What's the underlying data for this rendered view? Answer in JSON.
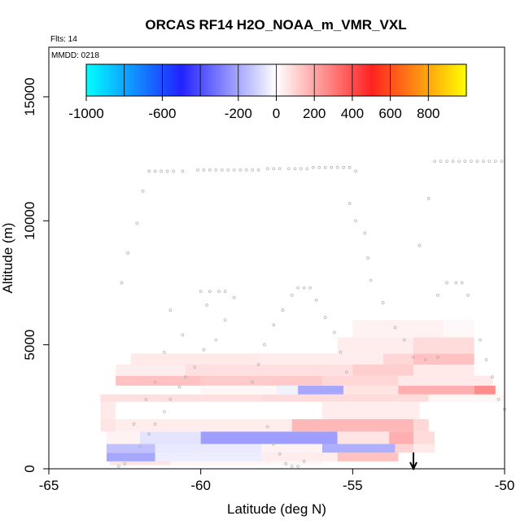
{
  "chart_data": {
    "type": "heatmap",
    "title": "ORCAS RF14 H2O_NOAA_m_VMR_VXL",
    "flights_label": "Flts: 14",
    "date_label": "MMDD: 0218",
    "xlabel": "Latitude (deg N)",
    "ylabel": "Altitude (m)",
    "xlim": [
      -65,
      -50
    ],
    "ylim": [
      0,
      17000
    ],
    "x_ticks": [
      -65,
      -60,
      -55,
      -50
    ],
    "y_ticks": [
      0,
      5000,
      10000,
      15000
    ],
    "colorbar": {
      "range": [
        -1000,
        1000
      ],
      "tick_values": [
        -1000,
        -600,
        -200,
        0,
        200,
        400,
        600,
        800
      ],
      "tick_labels": [
        "-1000",
        "-600",
        "-200",
        "0",
        "200",
        "400",
        "600",
        "800"
      ],
      "colors": [
        "#00ffff",
        "#2222ff",
        "#ffffff",
        "#ff2222",
        "#ffff00"
      ]
    },
    "grid": false,
    "cells": [
      {
        "lat": [
          -63,
          -61
        ],
        "alt": [
          150,
          300
        ],
        "value": 60
      },
      {
        "lat": [
          -61,
          -56
        ],
        "alt": [
          150,
          300
        ],
        "value": 20
      },
      {
        "lat": [
          -63.1,
          -61.5
        ],
        "alt": [
          300,
          650
        ],
        "value": -200
      },
      {
        "lat": [
          -61.5,
          -58
        ],
        "alt": [
          300,
          650
        ],
        "value": -40
      },
      {
        "lat": [
          -58,
          -55.5
        ],
        "alt": [
          300,
          650
        ],
        "value": 40
      },
      {
        "lat": [
          -55.5,
          -53.5
        ],
        "alt": [
          300,
          650
        ],
        "value": 140
      },
      {
        "lat": [
          -63.1,
          -61.5
        ],
        "alt": [
          650,
          1000
        ],
        "value": -140
      },
      {
        "lat": [
          -61.5,
          -58
        ],
        "alt": [
          650,
          1000
        ],
        "value": -50
      },
      {
        "lat": [
          -58,
          -56
        ],
        "alt": [
          650,
          1000
        ],
        "value": 30
      },
      {
        "lat": [
          -56,
          -53.6
        ],
        "alt": [
          650,
          1000
        ],
        "value": -180
      },
      {
        "lat": [
          -53.6,
          -53
        ],
        "alt": [
          650,
          1000
        ],
        "value": 100
      },
      {
        "lat": [
          -53,
          -52.3
        ],
        "alt": [
          650,
          1000
        ],
        "value": 50
      },
      {
        "lat": [
          -63.1,
          -62
        ],
        "alt": [
          1000,
          1500
        ],
        "value": 30
      },
      {
        "lat": [
          -62,
          -60
        ],
        "alt": [
          1000,
          1500
        ],
        "value": -60
      },
      {
        "lat": [
          -60,
          -55.5
        ],
        "alt": [
          1000,
          1500
        ],
        "value": -220
      },
      {
        "lat": [
          -55.5,
          -53.8
        ],
        "alt": [
          1000,
          1500
        ],
        "value": 60
      },
      {
        "lat": [
          -53.8,
          -53
        ],
        "alt": [
          1000,
          1500
        ],
        "value": 180
      },
      {
        "lat": [
          -53,
          -52.3
        ],
        "alt": [
          1000,
          1500
        ],
        "value": 80
      },
      {
        "lat": [
          -63.3,
          -62.8
        ],
        "alt": [
          1500,
          2000
        ],
        "value": 60
      },
      {
        "lat": [
          -62.8,
          -57
        ],
        "alt": [
          1500,
          2000
        ],
        "value": 40
      },
      {
        "lat": [
          -57,
          -53
        ],
        "alt": [
          1500,
          2000
        ],
        "value": 160
      },
      {
        "lat": [
          -53,
          -52.5
        ],
        "alt": [
          1500,
          2000
        ],
        "value": 90
      },
      {
        "lat": [
          -63.3,
          -62.8
        ],
        "alt": [
          2000,
          2700
        ],
        "value": 50
      },
      {
        "lat": [
          -56,
          -52.8
        ],
        "alt": [
          2000,
          2700
        ],
        "value": 40
      },
      {
        "lat": [
          -63.3,
          -58
        ],
        "alt": [
          2700,
          3000
        ],
        "value": 70
      },
      {
        "lat": [
          -58,
          -52.5
        ],
        "alt": [
          2700,
          3000
        ],
        "value": 80
      },
      {
        "lat": [
          -52.5,
          -50
        ],
        "alt": [
          2700,
          3000
        ],
        "value": 20
      },
      {
        "lat": [
          -60,
          -57.5
        ],
        "alt": [
          3000,
          3350
        ],
        "value": 20
      },
      {
        "lat": [
          -57.5,
          -56.8
        ],
        "alt": [
          3000,
          3350
        ],
        "value": -30
      },
      {
        "lat": [
          -56.8,
          -55.3
        ],
        "alt": [
          3000,
          3350
        ],
        "value": -200
      },
      {
        "lat": [
          -55.3,
          -53.5
        ],
        "alt": [
          3000,
          3350
        ],
        "value": 60
      },
      {
        "lat": [
          -53.5,
          -51
        ],
        "alt": [
          3000,
          3350
        ],
        "value": 180
      },
      {
        "lat": [
          -51,
          -50.3
        ],
        "alt": [
          3000,
          3350
        ],
        "value": 260
      },
      {
        "lat": [
          -62.8,
          -60
        ],
        "alt": [
          3350,
          3750
        ],
        "value": 140
      },
      {
        "lat": [
          -60,
          -56
        ],
        "alt": [
          3350,
          3750
        ],
        "value": 120
      },
      {
        "lat": [
          -56,
          -53.5
        ],
        "alt": [
          3350,
          3750
        ],
        "value": 90
      },
      {
        "lat": [
          -53.5,
          -50.4
        ],
        "alt": [
          3350,
          3750
        ],
        "value": 50
      },
      {
        "lat": [
          -62.8,
          -60.5
        ],
        "alt": [
          3750,
          4200
        ],
        "value": 40
      },
      {
        "lat": [
          -60.5,
          -55
        ],
        "alt": [
          3750,
          4200
        ],
        "value": 70
      },
      {
        "lat": [
          -55,
          -53
        ],
        "alt": [
          3750,
          4200
        ],
        "value": 110
      },
      {
        "lat": [
          -53,
          -51
        ],
        "alt": [
          3750,
          4200
        ],
        "value": 50
      },
      {
        "lat": [
          -62.3,
          -58
        ],
        "alt": [
          4200,
          4650
        ],
        "value": 50
      },
      {
        "lat": [
          -58,
          -54
        ],
        "alt": [
          4200,
          4650
        ],
        "value": 40
      },
      {
        "lat": [
          -54,
          -53
        ],
        "alt": [
          4200,
          4650
        ],
        "value": 90
      },
      {
        "lat": [
          -53,
          -51
        ],
        "alt": [
          4200,
          4650
        ],
        "value": 140
      },
      {
        "lat": [
          -55.5,
          -53
        ],
        "alt": [
          4650,
          5300
        ],
        "value": 40
      },
      {
        "lat": [
          -53,
          -51
        ],
        "alt": [
          4650,
          5300
        ],
        "value": 80
      },
      {
        "lat": [
          -55,
          -52
        ],
        "alt": [
          5300,
          6000
        ],
        "value": 30
      },
      {
        "lat": [
          -52,
          -51
        ],
        "alt": [
          5300,
          6000
        ],
        "value": 15
      }
    ],
    "flight_track": [
      [
        -62.7,
        100
      ],
      [
        -62.5,
        200
      ],
      [
        -62.2,
        500
      ],
      [
        -62,
        900
      ],
      [
        -61.7,
        1400
      ],
      [
        -61.5,
        1800
      ],
      [
        -61.2,
        2300
      ],
      [
        -61,
        2800
      ],
      [
        -60.7,
        3300
      ],
      [
        -60.5,
        3700
      ],
      [
        -60.2,
        4100
      ],
      [
        -59.9,
        4800
      ],
      [
        -59.5,
        5200
      ],
      [
        -59.2,
        6000
      ],
      [
        -59.8,
        6600
      ],
      [
        -60,
        7150
      ],
      [
        -59.7,
        7150
      ],
      [
        -59.4,
        7150
      ],
      [
        -59.2,
        7150
      ],
      [
        -58.9,
        6900
      ],
      [
        -62.2,
        1800
      ],
      [
        -61.8,
        2800
      ],
      [
        -61.5,
        3500
      ],
      [
        -61.2,
        4700
      ],
      [
        -60.6,
        5400
      ],
      [
        -61,
        6400
      ],
      [
        -62.6,
        7500
      ],
      [
        -62.4,
        8700
      ],
      [
        -62.1,
        9900
      ],
      [
        -61.9,
        11200
      ],
      [
        -61.7,
        12000
      ],
      [
        -61.5,
        12000
      ],
      [
        -61.3,
        12000
      ],
      [
        -61.1,
        12000
      ],
      [
        -60.9,
        12000
      ],
      [
        -60.6,
        12000
      ],
      [
        -60.1,
        12050
      ],
      [
        -59.9,
        12050
      ],
      [
        -59.7,
        12050
      ],
      [
        -59.5,
        12050
      ],
      [
        -59.3,
        12050
      ],
      [
        -59.1,
        12050
      ],
      [
        -58.9,
        12050
      ],
      [
        -58.7,
        12050
      ],
      [
        -58.5,
        12050
      ],
      [
        -58.3,
        12050
      ],
      [
        -58.1,
        12050
      ],
      [
        -57.8,
        12100
      ],
      [
        -57.6,
        12100
      ],
      [
        -57.4,
        12100
      ],
      [
        -57.1,
        12100
      ],
      [
        -56.9,
        12100
      ],
      [
        -56.7,
        12100
      ],
      [
        -56.5,
        12100
      ],
      [
        -56.3,
        12150
      ],
      [
        -56.1,
        12150
      ],
      [
        -55.9,
        12150
      ],
      [
        -55.7,
        12150
      ],
      [
        -55.5,
        12150
      ],
      [
        -55.3,
        12150
      ],
      [
        -55.1,
        12150
      ],
      [
        -54.9,
        12000
      ],
      [
        -58.3,
        3500
      ],
      [
        -58.1,
        4200
      ],
      [
        -57.9,
        5000
      ],
      [
        -57.6,
        5800
      ],
      [
        -57.3,
        6400
      ],
      [
        -57,
        7000
      ],
      [
        -56.8,
        7300
      ],
      [
        -56.6,
        7300
      ],
      [
        -56.4,
        7300
      ],
      [
        -56.2,
        6800
      ],
      [
        -55.9,
        6100
      ],
      [
        -55.6,
        5500
      ],
      [
        -55.4,
        4700
      ],
      [
        -55.2,
        3900
      ],
      [
        -57.8,
        1700
      ],
      [
        -57.6,
        1000
      ],
      [
        -57.4,
        600
      ],
      [
        -57.2,
        200
      ],
      [
        -57,
        100
      ],
      [
        -56.8,
        100
      ],
      [
        -56.6,
        300
      ],
      [
        -55.1,
        10700
      ],
      [
        -54.9,
        10000
      ],
      [
        -54.6,
        9500
      ],
      [
        -54.5,
        8500
      ],
      [
        -54.4,
        7600
      ],
      [
        -54,
        6700
      ],
      [
        -53.6,
        5700
      ],
      [
        -53.3,
        5200
      ],
      [
        -53,
        4500
      ],
      [
        -52.6,
        4400
      ],
      [
        -52.2,
        4500
      ],
      [
        -52.8,
        9000
      ],
      [
        -52.5,
        10900
      ],
      [
        -52.3,
        12400
      ],
      [
        -52.1,
        12400
      ],
      [
        -51.9,
        12400
      ],
      [
        -51.7,
        12400
      ],
      [
        -51.5,
        12400
      ],
      [
        -51.3,
        12400
      ],
      [
        -51.1,
        12400
      ],
      [
        -50.9,
        12400
      ],
      [
        -50.7,
        12400
      ],
      [
        -50.5,
        12400
      ],
      [
        -50.3,
        12400
      ],
      [
        -50.1,
        12400
      ],
      [
        -52.2,
        7000
      ],
      [
        -51.9,
        7500
      ],
      [
        -51.6,
        7500
      ],
      [
        -51.4,
        7500
      ],
      [
        -51.2,
        7000
      ],
      [
        -50.8,
        5200
      ],
      [
        -50.6,
        4400
      ],
      [
        -50.4,
        3700
      ],
      [
        -50.2,
        2800
      ],
      [
        -50,
        2400
      ]
    ],
    "launch_marker_lat": -53
  }
}
